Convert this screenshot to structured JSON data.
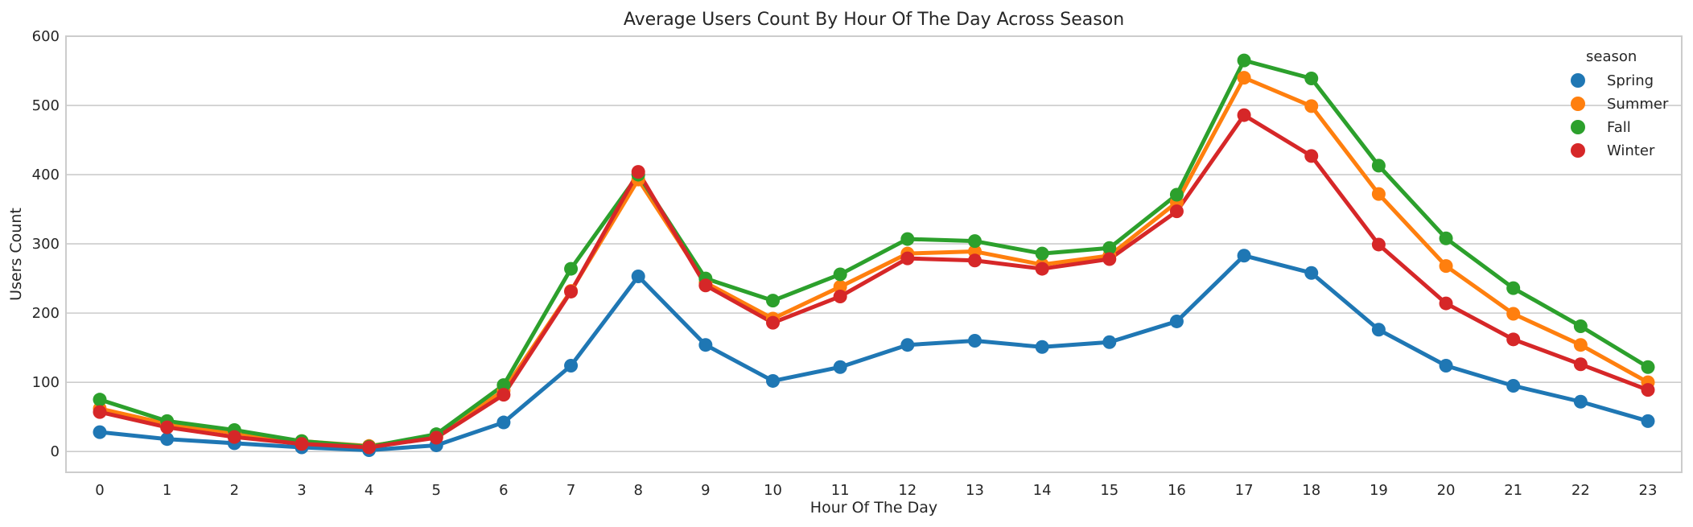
{
  "chart_data": {
    "type": "line",
    "title": "Average Users Count By Hour Of The Day Across Season",
    "xlabel": "Hour Of The Day",
    "ylabel": "Users Count",
    "categories": [
      "0",
      "1",
      "2",
      "3",
      "4",
      "5",
      "6",
      "7",
      "8",
      "9",
      "10",
      "11",
      "12",
      "13",
      "14",
      "15",
      "16",
      "17",
      "18",
      "19",
      "20",
      "21",
      "22",
      "23"
    ],
    "ylim": [
      -30,
      600
    ],
    "yticks": [
      0,
      100,
      200,
      300,
      400,
      500,
      600
    ],
    "grid": "horizontal",
    "legend": {
      "title": "season",
      "placement": "top-right"
    },
    "series": [
      {
        "name": "Spring",
        "color": "#1f77b4",
        "values": [
          28,
          18,
          12,
          6,
          2,
          9,
          42,
          124,
          253,
          154,
          102,
          122,
          154,
          160,
          151,
          158,
          188,
          283,
          258,
          176,
          124,
          95,
          72,
          44
        ]
      },
      {
        "name": "Summer",
        "color": "#ff7f0e",
        "values": [
          62,
          40,
          27,
          15,
          8,
          22,
          88,
          232,
          393,
          244,
          192,
          238,
          286,
          289,
          270,
          283,
          360,
          540,
          499,
          372,
          268,
          199,
          154,
          100
        ]
      },
      {
        "name": "Fall",
        "color": "#2ca02c",
        "values": [
          75,
          44,
          31,
          15,
          7,
          25,
          96,
          264,
          400,
          250,
          218,
          256,
          307,
          304,
          286,
          294,
          371,
          565,
          539,
          413,
          308,
          236,
          181,
          122
        ]
      },
      {
        "name": "Winter",
        "color": "#d62728",
        "values": [
          57,
          35,
          21,
          11,
          6,
          20,
          82,
          231,
          404,
          240,
          186,
          224,
          279,
          276,
          264,
          278,
          347,
          486,
          427,
          299,
          214,
          162,
          126,
          89
        ]
      }
    ]
  }
}
